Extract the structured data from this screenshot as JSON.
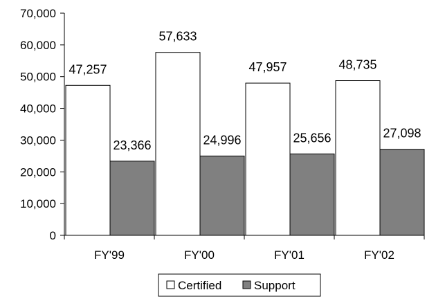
{
  "chart_data": {
    "type": "bar",
    "categories": [
      "FY'99",
      "FY'00",
      "FY'01",
      "FY'02"
    ],
    "series": [
      {
        "name": "Certified",
        "values": [
          47257,
          57633,
          47957,
          48735
        ],
        "color": "#ffffff",
        "stroke": "#000000",
        "labels": [
          "47,257",
          "57,633",
          "47,957",
          "48,735"
        ]
      },
      {
        "name": "Support",
        "values": [
          23366,
          24996,
          25656,
          27098
        ],
        "color": "#808080",
        "stroke": "#000000",
        "labels": [
          "23,366",
          "24,996",
          "25,656",
          "27,098"
        ]
      }
    ],
    "ylim": [
      0,
      70000
    ],
    "yticks": [
      0,
      10000,
      20000,
      30000,
      40000,
      50000,
      60000,
      70000
    ],
    "ytick_labels": [
      "0",
      "10,000",
      "20,000",
      "30,000",
      "40,000",
      "50,000",
      "60,000",
      "70,000"
    ],
    "grid": false,
    "legend_position": "bottom"
  }
}
